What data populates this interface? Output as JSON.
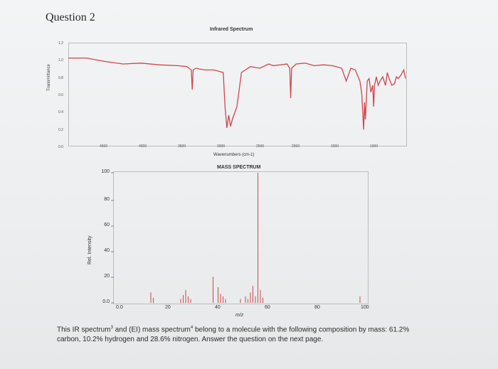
{
  "question": {
    "title": "Question 2"
  },
  "ir": {
    "title": "Infrared Spectrum",
    "ylabel": "Transmittance",
    "xlabel": "Wavenumbers (cm-1)",
    "yticks": [
      "1.2",
      "1.0",
      "0.8",
      "0.6",
      "0.4",
      "0.2",
      "0.0"
    ],
    "xticks": [
      "4500",
      "4000",
      "3500",
      "3000",
      "2500",
      "2000",
      "1500",
      "1000"
    ],
    "line_color": "#d0454b"
  },
  "ms": {
    "title": "MASS SPECTRUM",
    "ylabel": "Rel. Intensity",
    "xlabel": "m/z",
    "yticks": [
      "100",
      "80",
      "60",
      "40",
      "20",
      "0.0"
    ],
    "xticks": [
      "0.0",
      "20",
      "40",
      "60",
      "80",
      "100"
    ],
    "line_color": "#d0454b"
  },
  "caption": {
    "prefix": "This IR spectrum",
    "sup1": "3",
    "middle": " and (EI) mass spectrum",
    "sup2": "4",
    "suffix": " belong to a molecule with the following composition by mass: 61.2% carbon, 10.2% hydrogen and 28.6% nitrogen. Answer the question on the next page."
  },
  "chart_data": [
    {
      "type": "line",
      "title": "Infrared Spectrum",
      "xlabel": "Wavenumbers (cm-1)",
      "ylabel": "Transmittance",
      "xlim": [
        4500,
        1000
      ],
      "ylim": [
        0.0,
        1.2
      ],
      "x": [
        4700,
        4500,
        4300,
        4100,
        3900,
        3700,
        3500,
        3400,
        3350,
        3340,
        3330,
        3300,
        3200,
        3100,
        3000,
        2980,
        2960,
        2940,
        2920,
        2900,
        2850,
        2800,
        2700,
        2600,
        2500,
        2450,
        2300,
        2270,
        2260,
        2250,
        2200,
        2100,
        2000,
        1900,
        1800,
        1700,
        1650,
        1600,
        1550,
        1500,
        1480,
        1460,
        1450,
        1440,
        1420,
        1400,
        1380,
        1360,
        1350,
        1340,
        1320,
        1300,
        1280,
        1250,
        1220,
        1200,
        1180,
        1150,
        1120,
        1100,
        1080,
        1050,
        1020,
        1000
      ],
      "y": [
        1.02,
        1.02,
        0.98,
        0.95,
        0.96,
        0.94,
        0.93,
        0.92,
        0.88,
        0.65,
        0.88,
        0.9,
        0.88,
        0.88,
        0.85,
        0.45,
        0.2,
        0.35,
        0.22,
        0.3,
        0.45,
        0.85,
        0.92,
        0.9,
        0.95,
        0.93,
        0.95,
        0.9,
        0.55,
        0.9,
        0.95,
        0.96,
        0.93,
        0.94,
        0.93,
        0.9,
        0.75,
        0.9,
        0.88,
        0.75,
        0.6,
        0.18,
        0.5,
        0.3,
        0.75,
        0.78,
        0.62,
        0.7,
        0.45,
        0.7,
        0.8,
        0.7,
        0.75,
        0.8,
        0.7,
        0.85,
        0.78,
        0.7,
        0.72,
        0.8,
        0.78,
        0.82,
        0.88,
        0.78
      ]
    },
    {
      "type": "bar",
      "title": "MASS SPECTRUM",
      "xlabel": "m/z",
      "ylabel": "Rel. Intensity",
      "xlim": [
        0,
        100
      ],
      "ylim": [
        0,
        100
      ],
      "x": [
        14,
        15,
        26,
        27,
        28,
        29,
        30,
        39,
        41,
        42,
        43,
        44,
        50,
        52,
        53,
        54,
        55,
        56,
        57,
        58,
        59,
        98
      ],
      "values": [
        8,
        4,
        3,
        6,
        10,
        5,
        3,
        20,
        12,
        7,
        5,
        3,
        3,
        5,
        3,
        8,
        13,
        5,
        100,
        10,
        4,
        5
      ]
    }
  ]
}
